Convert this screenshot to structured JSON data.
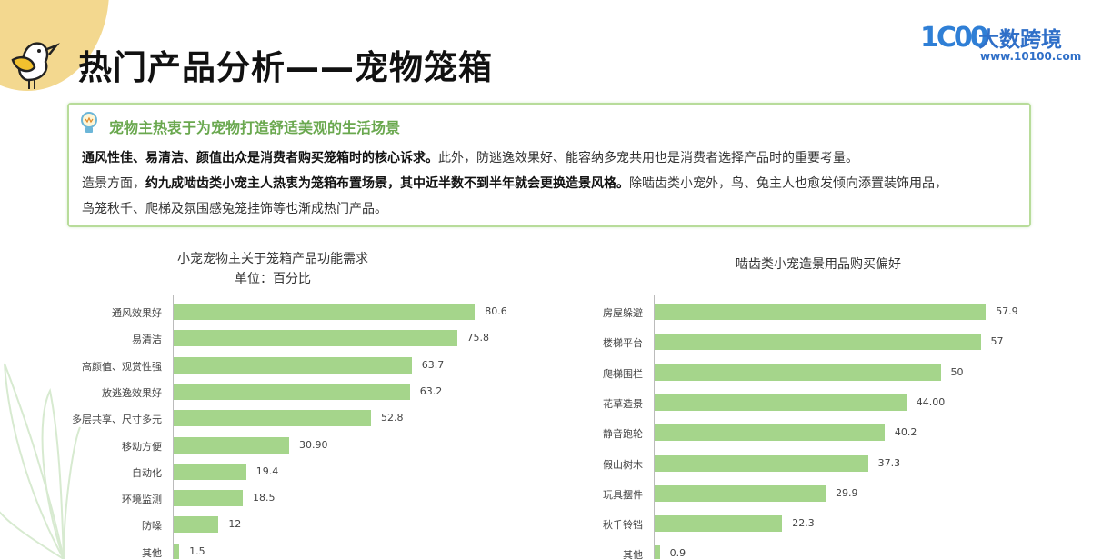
{
  "header": {
    "title": "热门产品分析——宠物笼箱",
    "logo": {
      "mark": "1C00",
      "name": "大数跨境",
      "url": "www.10100.com"
    }
  },
  "callout": {
    "icon": "lightbulb-icon",
    "heading": "宠物主热衷于为宠物打造舒适美观的生活场景",
    "line1_bold": "通风性佳、易清洁、颜值出众是消费者购买笼箱时的核心诉求。",
    "line1_rest": "此外，防逃逸效果好、能容纳多宠共用也是消费者选择产品时的重要考量。",
    "line2_pre": "造景方面，",
    "line2_bold": "约九成啮齿类小宠主人热衷为笼箱布置场景，其中近半数不到半年就会更换造景风格。",
    "line2_rest": "除啮齿类小宠外，鸟、兔主人也愈发倾向添置装饰用品，",
    "line3": "鸟笼秋千、爬梯及氛围感兔笼挂饰等也渐成热门产品。"
  },
  "colors": {
    "bar": "#a5d58b",
    "accent": "#6aa84f",
    "border": "#b8dc9a",
    "blob": "#f3d88f",
    "logo": "#2f6fc8"
  },
  "chart_data": [
    {
      "type": "bar",
      "orientation": "horizontal",
      "title": "小宠宠物主关于笼箱产品功能需求",
      "subtitle": "单位：百分比",
      "xlabel": "",
      "ylabel": "",
      "categories": [
        "通风效果好",
        "易清洁",
        "高颜值、观赏性强",
        "放逃逸效果好",
        "多层共享、尺寸多元",
        "移动方便",
        "自动化",
        "环境监测",
        "防噪",
        "其他"
      ],
      "values": [
        80.6,
        75.8,
        63.7,
        63.2,
        52.8,
        30.9,
        19.4,
        18.5,
        12,
        1.5
      ],
      "labels": [
        "80.6",
        "75.8",
        "63.7",
        "63.2",
        "52.8",
        "30.90",
        "19.4",
        "18.5",
        "12",
        "1.5"
      ],
      "grid": false,
      "legend": null
    },
    {
      "type": "bar",
      "orientation": "horizontal",
      "title": "啮齿类小宠造景用品购买偏好",
      "xlabel": "",
      "ylabel": "",
      "categories": [
        "房屋躲避",
        "楼梯平台",
        "爬梯围栏",
        "花草造景",
        "静音跑轮",
        "假山树木",
        "玩具摆件",
        "秋千铃铛",
        "其他"
      ],
      "values": [
        57.9,
        57,
        50,
        44.0,
        40.2,
        37.3,
        29.9,
        22.3,
        0.9
      ],
      "labels": [
        "57.9",
        "57",
        "50",
        "44.00",
        "40.2",
        "37.3",
        "29.9",
        "22.3",
        "0.9"
      ],
      "grid": false,
      "legend": null
    }
  ]
}
